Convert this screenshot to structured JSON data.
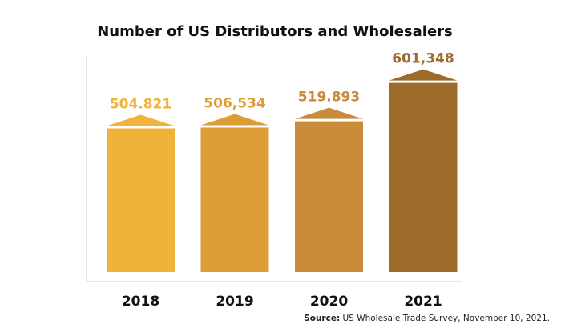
{
  "chart_data": {
    "type": "bar",
    "title": "Number of US Distributors and Wholesalers",
    "categories": [
      "2018",
      "2019",
      "2020",
      "2021"
    ],
    "values": [
      504821,
      506534,
      519893,
      601348
    ],
    "value_labels": [
      "504.821",
      "506,534",
      "519.893",
      "601,348"
    ],
    "colors": [
      "#f0b23a",
      "#dc9d37",
      "#c98a3a",
      "#9c6a2b"
    ],
    "ylim": [
      200000,
      650000
    ],
    "source_label": "Source:",
    "source": "US Wholesale Trade Survey, November 10, 2021."
  }
}
